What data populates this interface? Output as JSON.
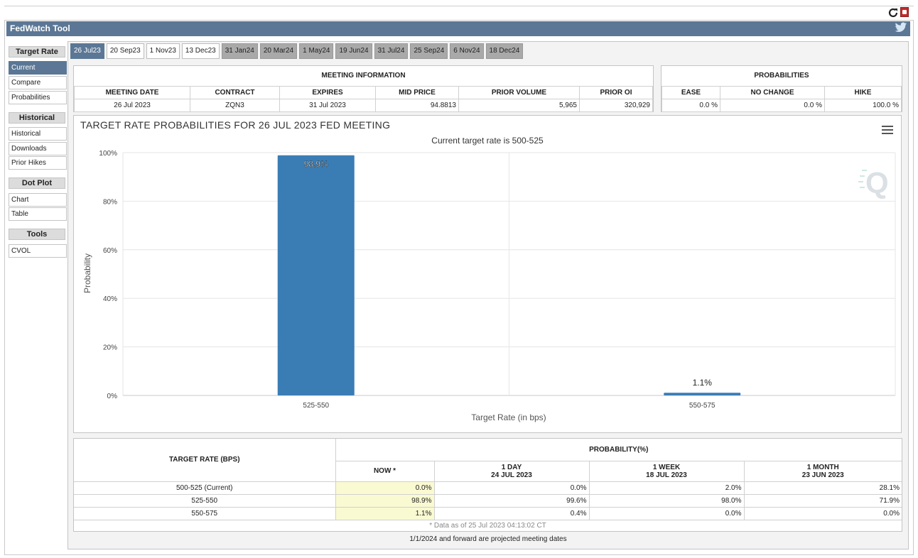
{
  "app": {
    "title": "FedWatch Tool"
  },
  "sidebar": {
    "sections": [
      {
        "title": "Target Rate",
        "items": [
          "Current",
          "Compare",
          "Probabilities"
        ]
      },
      {
        "title": "Historical",
        "items": [
          "Historical",
          "Downloads",
          "Prior Hikes"
        ]
      },
      {
        "title": "Dot Plot",
        "items": [
          "Chart",
          "Table"
        ]
      },
      {
        "title": "Tools",
        "items": [
          "CVOL"
        ]
      }
    ],
    "active_item": "Current"
  },
  "tabs": [
    {
      "label": "26 Jul23",
      "state": "selected"
    },
    {
      "label": "20 Sep23",
      "state": "normal"
    },
    {
      "label": "1 Nov23",
      "state": "normal"
    },
    {
      "label": "13 Dec23",
      "state": "normal"
    },
    {
      "label": "31 Jan24",
      "state": "grey"
    },
    {
      "label": "20 Mar24",
      "state": "grey"
    },
    {
      "label": "1 May24",
      "state": "grey"
    },
    {
      "label": "19 Jun24",
      "state": "grey"
    },
    {
      "label": "31 Jul24",
      "state": "grey"
    },
    {
      "label": "25 Sep24",
      "state": "grey"
    },
    {
      "label": "6 Nov24",
      "state": "grey"
    },
    {
      "label": "18 Dec24",
      "state": "grey"
    }
  ],
  "meeting_info": {
    "section_title": "MEETING INFORMATION",
    "headers": [
      "MEETING DATE",
      "CONTRACT",
      "EXPIRES",
      "MID PRICE",
      "PRIOR VOLUME",
      "PRIOR OI"
    ],
    "values": [
      "26 Jul 2023",
      "ZQN3",
      "31 Jul 2023",
      "94.8813",
      "5,965",
      "320,929"
    ]
  },
  "probabilities": {
    "section_title": "PROBABILITIES",
    "headers": [
      "EASE",
      "NO CHANGE",
      "HIKE"
    ],
    "values": [
      "0.0 %",
      "0.0 %",
      "100.0 %"
    ]
  },
  "chart_data": {
    "type": "bar",
    "title": "TARGET RATE PROBABILITIES FOR 26 JUL 2023 FED MEETING",
    "subtitle": "Current target rate is 500-525",
    "xlabel": "Target Rate (in bps)",
    "ylabel": "Probability",
    "categories": [
      "525-550",
      "550-575"
    ],
    "values": [
      98.9,
      1.1
    ],
    "data_labels": [
      "98.9%",
      "1.1%"
    ],
    "ylim": [
      0,
      100
    ],
    "yticks": [
      "0%",
      "20%",
      "40%",
      "60%",
      "80%",
      "100%"
    ],
    "bar_color": "#3a7db5",
    "grid": true
  },
  "prob_table": {
    "col1_header": "TARGET RATE (BPS)",
    "group_header": "PROBABILITY(%)",
    "columns": [
      {
        "line1": "NOW *",
        "line2": ""
      },
      {
        "line1": "1 DAY",
        "line2": "24 JUL 2023"
      },
      {
        "line1": "1 WEEK",
        "line2": "18 JUL 2023"
      },
      {
        "line1": "1 MONTH",
        "line2": "23 JUN 2023"
      }
    ],
    "rows": [
      {
        "rate": "500-525 (Current)",
        "values": [
          "0.0%",
          "0.0%",
          "2.0%",
          "28.1%"
        ]
      },
      {
        "rate": "525-550",
        "values": [
          "98.9%",
          "99.6%",
          "98.0%",
          "71.9%"
        ]
      },
      {
        "rate": "550-575",
        "values": [
          "1.1%",
          "0.4%",
          "0.0%",
          "0.0%"
        ]
      }
    ],
    "note": "* Data as of 25 Jul 2023 04:13:02 CT"
  },
  "footer": "1/1/2024 and forward are projected meeting dates"
}
